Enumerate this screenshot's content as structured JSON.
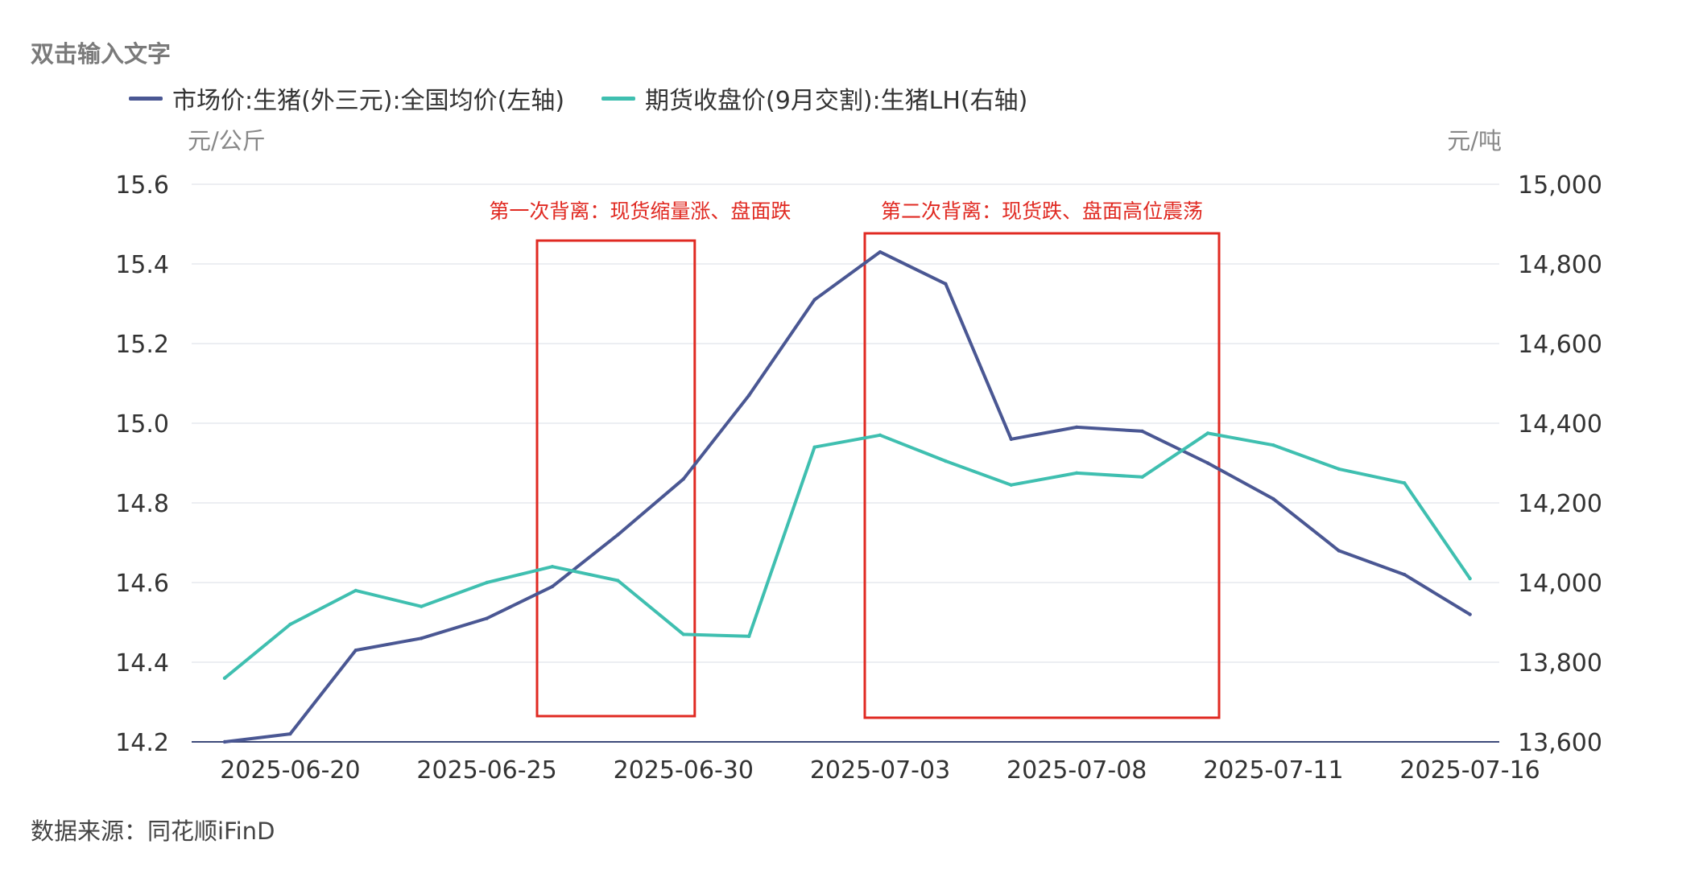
{
  "title": "双击输入文字",
  "source": "数据来源：同花顺iFinD",
  "chart_data": {
    "type": "line",
    "x": [
      "2025-06-19",
      "2025-06-20",
      "2025-06-23",
      "2025-06-24",
      "2025-06-25",
      "2025-06-26",
      "2025-06-27",
      "2025-06-30",
      "2025-07-01",
      "2025-07-02",
      "2025-07-03",
      "2025-07-04",
      "2025-07-07",
      "2025-07-08",
      "2025-07-09",
      "2025-07-10",
      "2025-07-11",
      "2025-07-14",
      "2025-07-15",
      "2025-07-16"
    ],
    "x_tick_labels": [
      "2025-06-20",
      "2025-06-25",
      "2025-06-30",
      "2025-07-03",
      "2025-07-08",
      "2025-07-11",
      "2025-07-16"
    ],
    "left_unit": "元/公斤",
    "right_unit": "元/吨",
    "ylim_left": [
      14.2,
      15.6
    ],
    "ylim_right": [
      13600,
      15000
    ],
    "left_ticks": [
      "14.2",
      "14.4",
      "14.6",
      "14.8",
      "15.0",
      "15.2",
      "15.4",
      "15.6"
    ],
    "right_ticks": [
      "13,600",
      "13,800",
      "14,000",
      "14,200",
      "14,400",
      "14,600",
      "14,800",
      "15,000"
    ],
    "grid": true,
    "legend_position": "top-left",
    "series": [
      {
        "name": "市场价:生猪(外三元):全国均价(左轴)",
        "axis": "left",
        "color": "#4a5793",
        "values": [
          14.2,
          14.22,
          14.43,
          14.46,
          14.51,
          14.59,
          14.72,
          14.86,
          15.07,
          15.31,
          15.43,
          15.35,
          14.96,
          14.99,
          14.98,
          14.9,
          14.81,
          14.68,
          14.62,
          14.52
        ]
      },
      {
        "name": "期货收盘价(9月交割):生猪LH(右轴)",
        "axis": "right",
        "color": "#3fbfb0",
        "values": [
          13760,
          13895,
          13980,
          13940,
          14000,
          14040,
          14005,
          13870,
          13865,
          14340,
          14370,
          14305,
          14245,
          14275,
          14265,
          14375,
          14345,
          14285,
          14250,
          14010
        ]
      }
    ],
    "annotations": [
      {
        "text": "第一次背离：现货缩量涨、盘面跌",
        "from": 5,
        "to": 7
      },
      {
        "text": "第二次背离：现货跌、盘面高位震荡",
        "from": 10,
        "to": 15
      }
    ]
  }
}
